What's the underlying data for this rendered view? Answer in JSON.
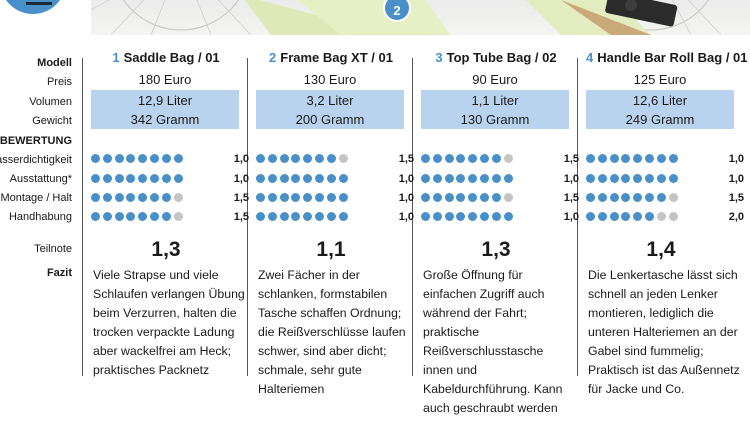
{
  "row_labels": {
    "modell": "Modell",
    "preis": "Preis",
    "volumen": "Volumen",
    "gewicht": "Gewicht",
    "bewertung": "BEWERTUNG",
    "wasser": "Wasserdichtigkeit",
    "ausstattung": "Ausstattung*",
    "montage": "Montage / Halt",
    "handhabung": "Handhabung",
    "teilnote": "Teilnote",
    "fazit": "Fazit"
  },
  "photo_badge": "2",
  "colors": {
    "accent": "#4a90c8",
    "shade": "#b9d3ee",
    "dot_off": "#c4c4c4"
  },
  "products": [
    {
      "num": "1",
      "name": "Saddle Bag / 01",
      "preis": "180 Euro",
      "volumen": "12,9 Liter",
      "gewicht": "342 Gramm",
      "ratings": [
        {
          "filled": 8,
          "total": 8,
          "score": "1,0"
        },
        {
          "filled": 8,
          "total": 8,
          "score": "1,0"
        },
        {
          "filled": 7,
          "total": 8,
          "score": "1,5"
        },
        {
          "filled": 7,
          "total": 8,
          "score": "1,5"
        }
      ],
      "teilnote": "1,3",
      "fazit": "Viele Strapse und viele Schlaufen verlangen Übung beim Verzurren, halten die trocken verpackte Ladung aber wackelfrei am Heck; praktisches Packnetz"
    },
    {
      "num": "2",
      "name": "Frame Bag XT / 01",
      "preis": "130 Euro",
      "volumen": "3,2 Liter",
      "gewicht": "200 Gramm",
      "ratings": [
        {
          "filled": 7,
          "total": 8,
          "score": "1,5"
        },
        {
          "filled": 8,
          "total": 8,
          "score": "1,0"
        },
        {
          "filled": 8,
          "total": 8,
          "score": "1,0"
        },
        {
          "filled": 8,
          "total": 8,
          "score": "1,0"
        }
      ],
      "teilnote": "1,1",
      "fazit": "Zwei Fächer in der schlanken, formstabilen Tasche schaffen Ordnung; die Reißverschlüsse laufen schwer, sind aber dicht; schmale, sehr gute Halteriemen"
    },
    {
      "num": "3",
      "name": "Top Tube Bag / 02",
      "preis": "90 Euro",
      "volumen": "1,1 Liter",
      "gewicht": "130 Gramm",
      "ratings": [
        {
          "filled": 7,
          "total": 8,
          "score": "1,5"
        },
        {
          "filled": 8,
          "total": 8,
          "score": "1,0"
        },
        {
          "filled": 7,
          "total": 8,
          "score": "1,5"
        },
        {
          "filled": 8,
          "total": 8,
          "score": "1,0"
        }
      ],
      "teilnote": "1,3",
      "fazit": "Große Öffnung für einfachen Zugriff auch während der Fahrt; praktische Reißverschlusstasche innen und Kabeldurchführung. Kann auch geschraubt werden"
    },
    {
      "num": "4",
      "name": "Handle Bar Roll Bag / 01",
      "preis": "125 Euro",
      "volumen": "12,6 Liter",
      "gewicht": "249 Gramm",
      "ratings": [
        {
          "filled": 8,
          "total": 8,
          "score": "1,0"
        },
        {
          "filled": 8,
          "total": 8,
          "score": "1,0"
        },
        {
          "filled": 7,
          "total": 8,
          "score": "1,5"
        },
        {
          "filled": 6,
          "total": 8,
          "score": "2,0"
        }
      ],
      "teilnote": "1,4",
      "fazit": "Die Lenkertasche lässt sich schnell an jeden Lenker montieren, lediglich die unteren Halteriemen an der Gabel sind fummelig; Praktisch ist das Außennetz für Jacke und Co."
    }
  ]
}
